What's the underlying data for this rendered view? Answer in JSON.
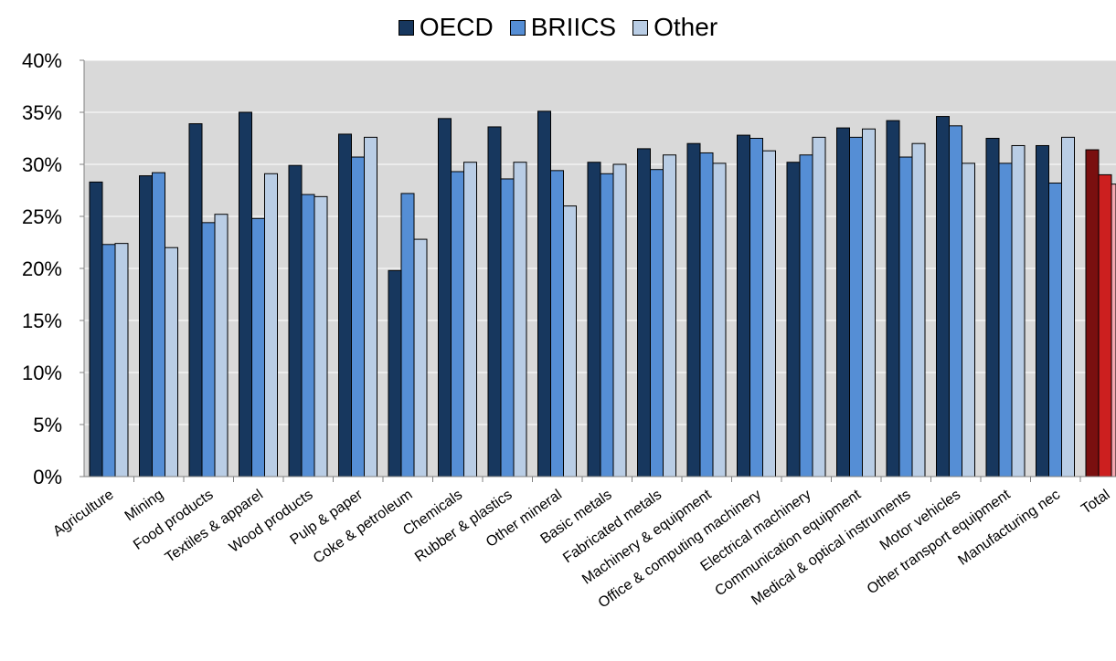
{
  "chart_data": {
    "type": "bar",
    "categories": [
      "Agriculture",
      "Mining",
      "Food products",
      "Textiles & apparel",
      "Wood products",
      "Pulp & paper",
      "Coke & petroleum",
      "Chemicals",
      "Rubber & plastics",
      "Other mineral",
      "Basic metals",
      "Fabricated metals",
      "Machinery & equipment",
      "Office & computing machinery",
      "Electrical machinery",
      "Communication equipment",
      "Medical & optical instruments",
      "Motor vehicles",
      "Other transport equipment",
      "Manufacturing nec",
      "Total"
    ],
    "series": [
      {
        "name": "OECD",
        "color": "#17375e",
        "highlight_color": "#7a0f0f",
        "values": [
          28.3,
          28.9,
          33.9,
          35.0,
          29.9,
          32.9,
          19.8,
          34.4,
          33.6,
          35.1,
          30.2,
          31.5,
          32.0,
          32.8,
          30.2,
          33.5,
          34.2,
          34.6,
          32.5,
          31.8,
          31.4
        ]
      },
      {
        "name": "BRIICS",
        "color": "#558ed5",
        "highlight_color": "#cc1f1f",
        "values": [
          22.3,
          29.2,
          24.4,
          24.8,
          27.1,
          30.7,
          27.2,
          29.3,
          28.6,
          29.4,
          29.1,
          29.5,
          31.1,
          32.5,
          30.9,
          32.6,
          30.7,
          33.7,
          30.1,
          28.2,
          29.0
        ]
      },
      {
        "name": "Other",
        "color": "#b9cde5",
        "highlight_color": "#f4a7b0",
        "values": [
          22.4,
          22.0,
          25.2,
          29.1,
          26.9,
          32.6,
          22.8,
          30.2,
          30.2,
          26.0,
          30.0,
          30.9,
          30.1,
          31.3,
          32.6,
          33.4,
          32.0,
          30.1,
          31.8,
          32.6,
          28.1
        ]
      }
    ],
    "highlight_category": "Total",
    "ylim": [
      0,
      40
    ],
    "yticks": [
      "0%",
      "5%",
      "10%",
      "15%",
      "20%",
      "25%",
      "30%",
      "35%",
      "40%"
    ],
    "grid": true,
    "legend_position": "top",
    "plot_background": "#d9d9d9",
    "gridline_color": "#ffffff"
  }
}
